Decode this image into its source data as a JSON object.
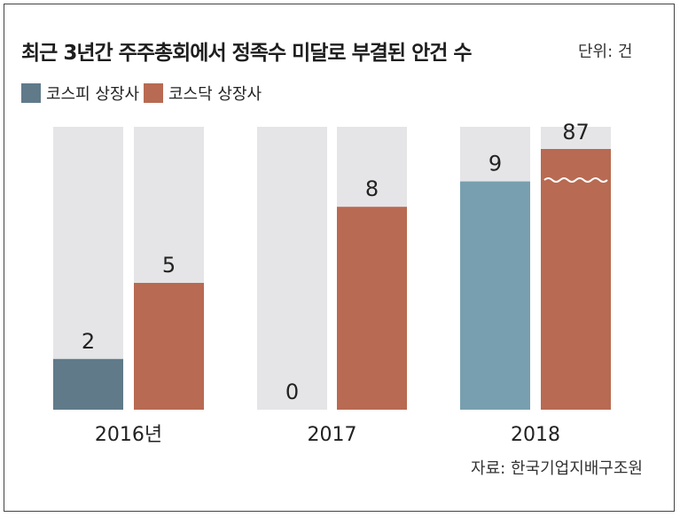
{
  "title": "최근 3년간 주주총회에서 정족수 미달로 부결된 안건 수",
  "unit": "단위: 건",
  "source": "자료: 한국기업지배구조원",
  "colors": {
    "kospi": "#607a8a",
    "kospi_2018": "#789faf",
    "kosdaq": "#b86a52",
    "track": "#e5e5e7"
  },
  "chart_data": {
    "type": "bar",
    "categories": [
      "2016년",
      "2017",
      "2018"
    ],
    "series": [
      {
        "name": "코스피 상장사",
        "values": [
          2,
          0,
          9
        ]
      },
      {
        "name": "코스닥 상장사",
        "values": [
          5,
          8,
          87
        ]
      }
    ],
    "ylim": [
      0,
      12
    ],
    "axis_break": "2018 코스닥 막대 물결 생략 표시",
    "legend_position": "top-left"
  }
}
